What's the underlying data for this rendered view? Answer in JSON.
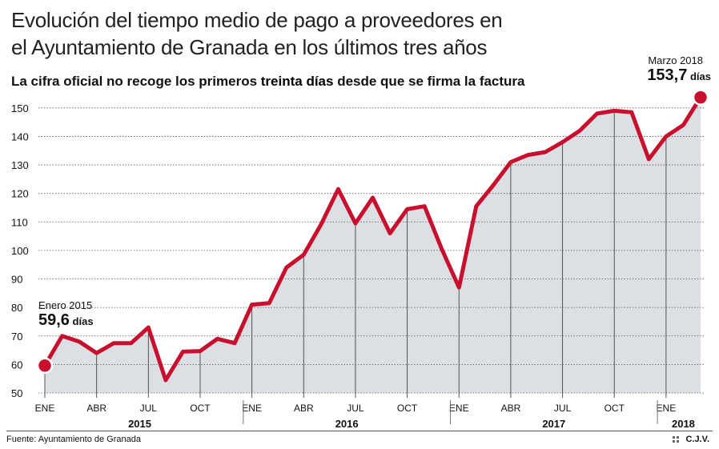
{
  "title_line1": "Evolución del tiempo medio de pago a proveedores en",
  "title_line2": "el Ayuntamiento de Granada en los últimos tres años",
  "subtitle": {
    "before": "La cifra oficial no recoge los primeros ",
    "highlight": "treinta días",
    "after": " desde que se firma la factura"
  },
  "source": "Fuente: Ayuntamiento de Granada",
  "credit": "C.J.V.",
  "colors": {
    "line": "#c8102e",
    "area": "#dcdfe3",
    "grid": "#555555",
    "text": "#111111"
  },
  "chart_data": {
    "type": "area",
    "title": "Evolución del tiempo medio de pago a proveedores en el Ayuntamiento de Granada en los últimos tres años",
    "ylabel": "días",
    "ylim": [
      50,
      155
    ],
    "yticks": [
      50,
      60,
      70,
      80,
      90,
      100,
      110,
      120,
      130,
      140,
      150
    ],
    "month_labels": [
      {
        "index": 0,
        "label": "ENE"
      },
      {
        "index": 3,
        "label": "ABR"
      },
      {
        "index": 6,
        "label": "JUL"
      },
      {
        "index": 9,
        "label": "OCT"
      },
      {
        "index": 12,
        "label": "ENE"
      },
      {
        "index": 15,
        "label": "ABR"
      },
      {
        "index": 18,
        "label": "JUL"
      },
      {
        "index": 21,
        "label": "OCT"
      },
      {
        "index": 24,
        "label": "ENE"
      },
      {
        "index": 27,
        "label": "ABR"
      },
      {
        "index": 30,
        "label": "JUL"
      },
      {
        "index": 33,
        "label": "OCT"
      },
      {
        "index": 36,
        "label": "ENE"
      }
    ],
    "years": [
      {
        "label": "2015",
        "start": 0,
        "end": 11
      },
      {
        "label": "2016",
        "start": 12,
        "end": 23
      },
      {
        "label": "2017",
        "start": 24,
        "end": 35
      },
      {
        "label": "2018",
        "start": 36,
        "end": 38
      }
    ],
    "values": [
      59.6,
      70,
      68,
      64,
      67.5,
      67.5,
      73,
      54.5,
      64.5,
      64.7,
      69,
      67.5,
      81,
      81.5,
      94,
      98.5,
      109,
      121.5,
      109.5,
      118.5,
      106,
      114.5,
      115.5,
      100.5,
      87,
      115.5,
      123,
      131,
      133.5,
      134.5,
      138,
      142,
      148,
      149,
      148.5,
      132,
      140,
      144,
      153.7
    ],
    "annotations": [
      {
        "index": 0,
        "label": "Enero 2015",
        "value": "59,6",
        "unit": "días"
      },
      {
        "index": 38,
        "label": "Marzo 2018",
        "value": "153,7",
        "unit": "días"
      }
    ]
  }
}
